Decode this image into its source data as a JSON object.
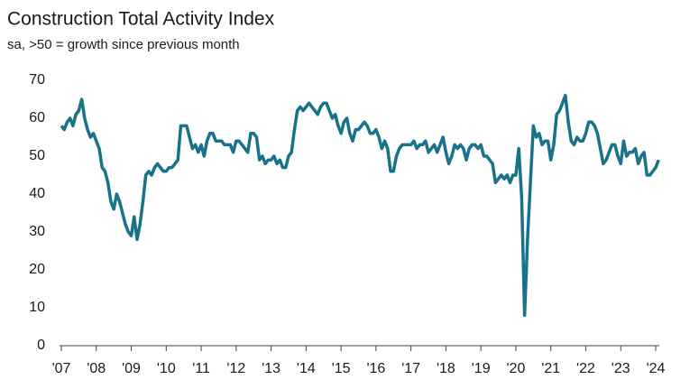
{
  "chart_data": {
    "type": "line",
    "title": "Construction Total Activity Index",
    "subtitle": "sa, >50 = growth since previous month",
    "categories": [
      "'07",
      null,
      null,
      null,
      null,
      null,
      null,
      null,
      null,
      null,
      null,
      null,
      "'08",
      null,
      null,
      null,
      null,
      null,
      null,
      null,
      null,
      null,
      null,
      null,
      "'09",
      null,
      null,
      null,
      null,
      null,
      null,
      null,
      null,
      null,
      null,
      null,
      "'10",
      null,
      null,
      null,
      null,
      null,
      null,
      null,
      null,
      null,
      null,
      null,
      "'11",
      null,
      null,
      null,
      null,
      null,
      null,
      null,
      null,
      null,
      null,
      null,
      "'12",
      null,
      null,
      null,
      null,
      null,
      null,
      null,
      null,
      null,
      null,
      null,
      "'13",
      null,
      null,
      null,
      null,
      null,
      null,
      null,
      null,
      null,
      null,
      null,
      "'14",
      null,
      null,
      null,
      null,
      null,
      null,
      null,
      null,
      null,
      null,
      null,
      "'15",
      null,
      null,
      null,
      null,
      null,
      null,
      null,
      null,
      null,
      null,
      null,
      "'16",
      null,
      null,
      null,
      null,
      null,
      null,
      null,
      null,
      null,
      null,
      null,
      "'17",
      null,
      null,
      null,
      null,
      null,
      null,
      null,
      null,
      null,
      null,
      null,
      "'18",
      null,
      null,
      null,
      null,
      null,
      null,
      null,
      null,
      null,
      null,
      null,
      "'19",
      null,
      null,
      null,
      null,
      null,
      null,
      null,
      null,
      null,
      null,
      null,
      "'20",
      null,
      null,
      null,
      null,
      null,
      null,
      null,
      null,
      null,
      null,
      null,
      "'21",
      null,
      null,
      null,
      null,
      null,
      null,
      null,
      null,
      null,
      null,
      null,
      "'22",
      null,
      null,
      null,
      null,
      null,
      null,
      null,
      null,
      null,
      null,
      null,
      "'23",
      null,
      null,
      null,
      null,
      null,
      null,
      null,
      null,
      null,
      null,
      null,
      "'24",
      null
    ],
    "series": [
      {
        "color": "#17728a",
        "values": [
          58,
          57,
          59,
          60,
          58,
          61,
          62,
          65,
          60,
          57,
          55,
          56,
          54,
          52,
          47,
          46,
          43,
          38,
          36,
          40,
          38,
          35,
          32,
          30,
          29,
          34,
          28,
          32,
          38,
          45,
          46,
          45,
          47,
          48,
          47,
          46,
          46,
          47,
          47,
          48,
          49,
          58,
          58,
          58,
          55,
          52,
          53,
          51,
          53,
          50,
          54,
          56,
          56,
          54,
          54,
          54,
          53,
          53,
          53,
          51,
          54,
          54,
          53,
          52,
          51,
          56,
          56,
          55,
          49,
          50,
          48,
          49,
          49,
          50,
          48,
          49,
          47,
          47,
          50,
          51,
          57,
          62,
          63,
          62,
          63,
          64,
          63,
          62,
          61,
          63,
          64,
          64,
          62,
          60,
          61,
          58,
          56,
          59,
          60,
          56,
          54,
          57,
          57,
          58,
          59,
          58,
          56,
          56,
          57,
          55,
          52,
          54,
          52,
          46,
          46,
          50,
          52,
          53,
          53,
          53,
          53,
          54,
          52,
          53,
          53,
          54,
          51,
          52,
          53,
          51,
          53,
          55,
          51,
          48,
          50,
          53,
          52,
          53,
          52,
          49,
          52,
          53,
          53,
          52,
          53,
          50,
          50,
          49,
          48,
          43,
          44,
          45,
          44,
          45,
          43,
          45,
          45,
          52,
          39,
          8,
          28,
          43,
          58,
          55,
          56,
          53,
          54,
          54,
          49,
          53,
          61,
          62,
          64,
          66,
          59,
          54,
          53,
          55,
          54,
          54,
          56,
          59,
          59,
          58,
          56,
          52,
          48,
          49,
          51,
          53,
          53,
          50,
          48,
          54,
          50,
          51,
          51,
          52,
          48,
          50,
          51,
          45,
          45,
          46,
          47,
          49
        ]
      }
    ],
    "ylim": [
      0,
      70
    ],
    "yticks": [
      0,
      10,
      20,
      30,
      40,
      50,
      60,
      70
    ],
    "grid": false
  }
}
